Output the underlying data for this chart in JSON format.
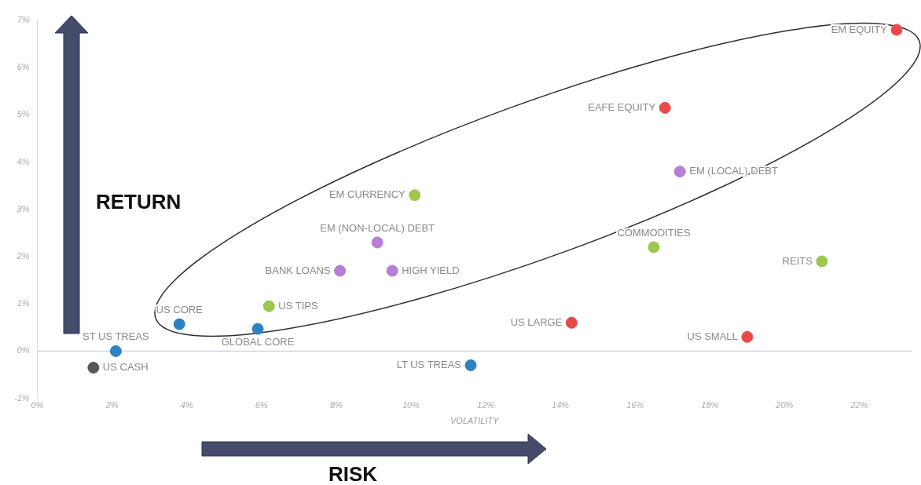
{
  "chart_data": {
    "type": "scatter",
    "xlabel": "VOLATILITY",
    "xlim": [
      0,
      23.4
    ],
    "xticks": [
      {
        "value": 0,
        "label": "0%"
      },
      {
        "value": 2,
        "label": "2%"
      },
      {
        "value": 4,
        "label": "4%"
      },
      {
        "value": 6,
        "label": "6%"
      },
      {
        "value": 8,
        "label": "8%"
      },
      {
        "value": 10,
        "label": "10%"
      },
      {
        "value": 12,
        "label": "12%"
      },
      {
        "value": 14,
        "label": "14%"
      },
      {
        "value": 16,
        "label": "16%"
      },
      {
        "value": 18,
        "label": "18%"
      },
      {
        "value": 20,
        "label": "20%"
      },
      {
        "value": 22,
        "label": "22%"
      }
    ],
    "ylim": [
      -1,
      7
    ],
    "yticks": [
      {
        "value": -1,
        "label": "-1%"
      },
      {
        "value": 0,
        "label": "0%"
      },
      {
        "value": 1,
        "label": "1%"
      },
      {
        "value": 2,
        "label": "2%"
      },
      {
        "value": 3,
        "label": "3%"
      },
      {
        "value": 4,
        "label": "4%"
      },
      {
        "value": 5,
        "label": "5%"
      },
      {
        "value": 6,
        "label": "6%"
      },
      {
        "value": 7,
        "label": "7%"
      }
    ],
    "grid": false,
    "legend": false,
    "marker": "circle",
    "ref_lines": [
      {
        "axis": "y",
        "value": 0,
        "color": "#d0d4da"
      }
    ],
    "series": [
      {
        "color": "#e84a4c",
        "x": [
          23.0,
          16.8,
          14.3,
          19.0
        ],
        "values": [
          6.8,
          5.15,
          0.6,
          0.3
        ]
      },
      {
        "color": "#b57ed8",
        "x": [
          17.2,
          9.1,
          8.1,
          9.5
        ],
        "values": [
          3.8,
          2.3,
          1.7,
          1.7
        ]
      },
      {
        "color": "#9dc64c",
        "x": [
          10.1,
          16.5,
          21.0,
          6.2
        ],
        "values": [
          3.3,
          2.2,
          1.9,
          0.95
        ]
      },
      {
        "color": "#2e82c2",
        "x": [
          3.8,
          5.9,
          2.1,
          11.6
        ],
        "values": [
          0.57,
          0.47,
          0.0,
          -0.3
        ]
      },
      {
        "color": "#555759",
        "x": [
          1.5
        ],
        "values": [
          -0.35
        ]
      }
    ],
    "annotations": [
      {
        "text": "EM EQUITY",
        "x": 23.0,
        "y": 6.8
      },
      {
        "text": "EAFE EQUITY",
        "x": 16.8,
        "y": 5.15
      },
      {
        "text": "US LARGE",
        "x": 14.3,
        "y": 0.6
      },
      {
        "text": "US SMALL",
        "x": 19.0,
        "y": 0.3
      },
      {
        "text": "EM (LOCAL) DEBT",
        "x": 17.2,
        "y": 3.8
      },
      {
        "text": "EM (NON-LOCAL) DEBT",
        "x": 9.1,
        "y": 2.3
      },
      {
        "text": "BANK LOANS",
        "x": 8.1,
        "y": 1.7
      },
      {
        "text": "HIGH YIELD",
        "x": 9.5,
        "y": 1.7
      },
      {
        "text": "EM CURRENCY",
        "x": 10.1,
        "y": 3.3
      },
      {
        "text": "COMMODITIES",
        "x": 16.5,
        "y": 2.2
      },
      {
        "text": "REITS",
        "x": 21.0,
        "y": 1.9
      },
      {
        "text": "US TIPS",
        "x": 6.2,
        "y": 0.95
      },
      {
        "text": "US CORE",
        "x": 3.8,
        "y": 0.57
      },
      {
        "text": "GLOBAL CORE",
        "x": 5.9,
        "y": 0.47
      },
      {
        "text": "ST US TREAS",
        "x": 2.1,
        "y": 0.0
      },
      {
        "text": "LT US TREAS",
        "x": 11.6,
        "y": -0.3
      },
      {
        "text": "US CASH",
        "x": 1.5,
        "y": -0.35
      },
      "RETURN",
      "RISK"
    ]
  }
}
